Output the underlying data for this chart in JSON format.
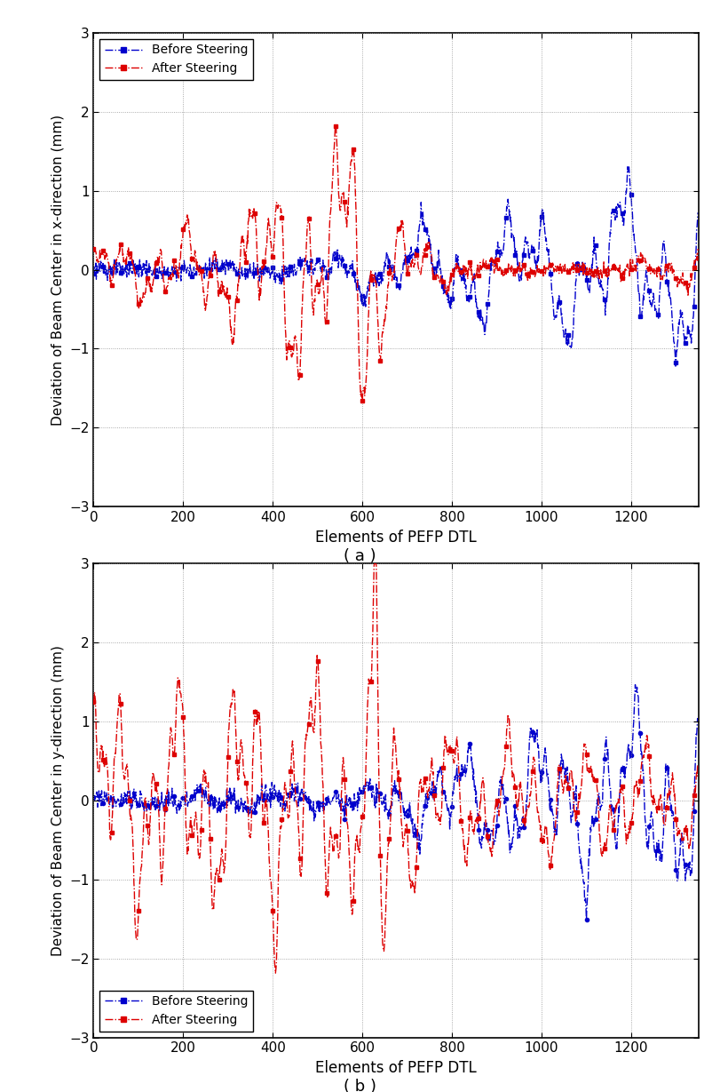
{
  "title_a": "( a )",
  "title_b": "( b )",
  "xlabel": "Elements of PEFP DTL",
  "ylabel_a": "Deviation of Beam Center in x-direction (mm)",
  "ylabel_b": "Deviation of Beam Center in y-direction (mm)",
  "xlim": [
    0,
    1350
  ],
  "ylim": [
    -3,
    3
  ],
  "xticks": [
    0,
    200,
    400,
    600,
    800,
    1000,
    1200
  ],
  "yticks": [
    -3,
    -2,
    -1,
    0,
    1,
    2,
    3
  ],
  "before_color": "#0000CC",
  "after_color": "#DD0000",
  "before_label": "Before Steering",
  "after_label": "After Steering",
  "n_points": 1350,
  "figsize": [
    8.11,
    12.29
  ],
  "dpi": 100,
  "legend_loc_a": "upper left",
  "legend_loc_b": "lower left"
}
